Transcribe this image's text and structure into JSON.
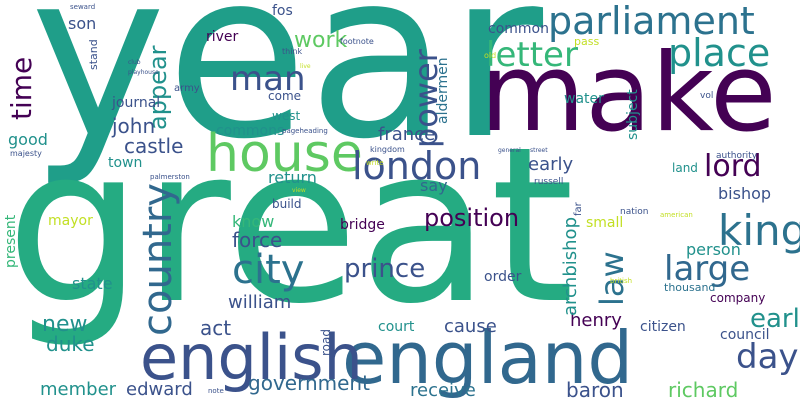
{
  "palette": {
    "dark_purple": "#440154",
    "indigo": "#3b528b",
    "blue": "#31688e",
    "steel": "#2c728e",
    "teal": "#21918c",
    "sea": "#1f9e89",
    "green": "#35b779",
    "light_green": "#5ec962",
    "lime": "#90d743",
    "yellow": "#c2df23",
    "gold": "#fde725"
  },
  "words": [
    {
      "text": "year",
      "color": "#1f9e89"
    },
    {
      "text": "make",
      "color": "#440154"
    },
    {
      "text": "great",
      "color": "#25ab82"
    },
    {
      "text": "england",
      "color": "#31688e"
    },
    {
      "text": "english",
      "color": "#3b528b"
    },
    {
      "text": "house",
      "color": "#5ec962"
    },
    {
      "text": "parliament",
      "color": "#2c728e"
    },
    {
      "text": "city",
      "color": "#2c728e"
    },
    {
      "text": "king",
      "color": "#2c728e"
    },
    {
      "text": "london",
      "color": "#3b528b"
    },
    {
      "text": "place",
      "color": "#21918c"
    },
    {
      "text": "country",
      "color": "#31688e"
    },
    {
      "text": "man",
      "color": "#3b528b"
    },
    {
      "text": "letter",
      "color": "#35b779"
    },
    {
      "text": "large",
      "color": "#31688e"
    },
    {
      "text": "power",
      "color": "#3b528b"
    },
    {
      "text": "lord",
      "color": "#440154"
    },
    {
      "text": "law",
      "color": "#2c728e"
    },
    {
      "text": "day",
      "color": "#3b528b"
    },
    {
      "text": "prince",
      "color": "#3b528b"
    },
    {
      "text": "earl",
      "color": "#21918c"
    },
    {
      "text": "time",
      "color": "#440154"
    },
    {
      "text": "appear",
      "color": "#21918c"
    },
    {
      "text": "work",
      "color": "#5ec962"
    },
    {
      "text": "john",
      "color": "#3b528b"
    },
    {
      "text": "castle",
      "color": "#3b528b"
    },
    {
      "text": "position",
      "color": "#440154"
    },
    {
      "text": "force",
      "color": "#3b528b"
    },
    {
      "text": "william",
      "color": "#3b528b"
    },
    {
      "text": "new",
      "color": "#21918c"
    },
    {
      "text": "duke",
      "color": "#21918c"
    },
    {
      "text": "act",
      "color": "#3b528b"
    },
    {
      "text": "government",
      "color": "#31688e"
    },
    {
      "text": "edward",
      "color": "#3b528b"
    },
    {
      "text": "member",
      "color": "#21918c"
    },
    {
      "text": "receive",
      "color": "#2c728e"
    },
    {
      "text": "baron",
      "color": "#3b528b"
    },
    {
      "text": "richard",
      "color": "#5ec962"
    },
    {
      "text": "cause",
      "color": "#3b528b"
    },
    {
      "text": "henry",
      "color": "#440154"
    },
    {
      "text": "archbishop",
      "color": "#21918c"
    },
    {
      "text": "bishop",
      "color": "#3b528b"
    },
    {
      "text": "person",
      "color": "#21918c"
    },
    {
      "text": "state",
      "color": "#21918c"
    },
    {
      "text": "early",
      "color": "#3b528b"
    },
    {
      "text": "france",
      "color": "#3b528b"
    },
    {
      "text": "return",
      "color": "#21918c"
    },
    {
      "text": "know",
      "color": "#35b779"
    },
    {
      "text": "son",
      "color": "#3b528b"
    },
    {
      "text": "good",
      "color": "#21918c"
    },
    {
      "text": "present",
      "color": "#35b779"
    },
    {
      "text": "say",
      "color": "#31688e"
    },
    {
      "text": "order",
      "color": "#3b528b"
    },
    {
      "text": "commons",
      "color": "#21918c"
    },
    {
      "text": "aldermen",
      "color": "#2c728e"
    },
    {
      "text": "subject",
      "color": "#21918c"
    },
    {
      "text": "common",
      "color": "#3b528b"
    },
    {
      "text": "town",
      "color": "#21918c"
    },
    {
      "text": "journal",
      "color": "#3b528b"
    },
    {
      "text": "river",
      "color": "#440154"
    },
    {
      "text": "fos",
      "color": "#3b528b"
    },
    {
      "text": "water",
      "color": "#21918c"
    },
    {
      "text": "bridge",
      "color": "#440154"
    },
    {
      "text": "mayor",
      "color": "#c2df23"
    },
    {
      "text": "court",
      "color": "#21918c"
    },
    {
      "text": "citizen",
      "color": "#3b528b"
    },
    {
      "text": "council",
      "color": "#3b528b"
    },
    {
      "text": "company",
      "color": "#440154"
    },
    {
      "text": "small",
      "color": "#c2df23"
    },
    {
      "text": "thousand",
      "color": "#2c728e"
    },
    {
      "text": "build",
      "color": "#3b528b"
    },
    {
      "text": "west",
      "color": "#21918c"
    },
    {
      "text": "come",
      "color": "#3b528b"
    },
    {
      "text": "road",
      "color": "#3b528b"
    },
    {
      "text": "army",
      "color": "#3b528b"
    },
    {
      "text": "stand",
      "color": "#3b528b"
    },
    {
      "text": "land",
      "color": "#21918c"
    },
    {
      "text": "authority",
      "color": "#3b528b"
    },
    {
      "text": "far",
      "color": "#3b528b"
    },
    {
      "text": "nation",
      "color": "#3b528b"
    },
    {
      "text": "russell",
      "color": "#3b528b"
    },
    {
      "text": "pass",
      "color": "#c2df23"
    },
    {
      "text": "vol",
      "color": "#3b528b"
    },
    {
      "text": "footnote",
      "color": "#3b528b"
    },
    {
      "text": "think",
      "color": "#3b528b"
    },
    {
      "text": "majesty",
      "color": "#3b528b"
    },
    {
      "text": "kingdom",
      "color": "#3b528b"
    },
    {
      "text": "palmerston",
      "color": "#3b528b"
    },
    {
      "text": "american",
      "color": "#c2df23"
    },
    {
      "text": "british",
      "color": "#c2df23"
    },
    {
      "text": "pageheading",
      "color": "#3b528b"
    },
    {
      "text": "seward",
      "color": "#3b528b"
    },
    {
      "text": "note",
      "color": "#3b528b"
    },
    {
      "text": "write",
      "color": "#c2df23"
    },
    {
      "text": "general",
      "color": "#3b528b"
    },
    {
      "text": "playhouse",
      "color": "#3b528b"
    },
    {
      "text": "old",
      "color": "#c2df23"
    },
    {
      "text": "live",
      "color": "#c2df23"
    },
    {
      "text": "street",
      "color": "#3b528b"
    },
    {
      "text": "club",
      "color": "#3b528b"
    },
    {
      "text": "view",
      "color": "#c2df23"
    }
  ]
}
